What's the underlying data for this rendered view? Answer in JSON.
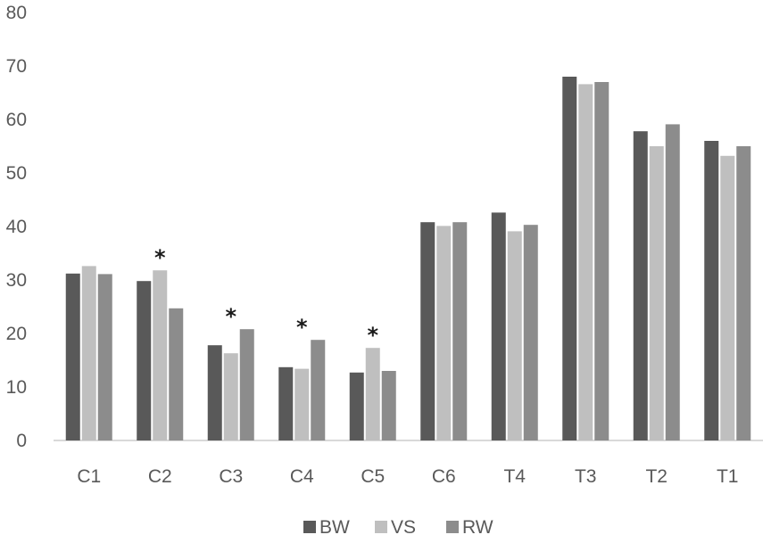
{
  "chart_data": {
    "type": "bar",
    "categories": [
      "C1",
      "C2",
      "C3",
      "C4",
      "C5",
      "C6",
      "T4",
      "T3",
      "T2",
      "T1"
    ],
    "series": [
      {
        "name": "BW",
        "color": "#595959",
        "values": [
          31.2,
          29.8,
          17.8,
          13.7,
          12.7,
          40.8,
          42.6,
          68.0,
          57.8,
          56.0
        ]
      },
      {
        "name": "VS",
        "color": "#bfbfbf",
        "values": [
          32.6,
          31.8,
          16.3,
          13.4,
          17.3,
          40.1,
          39.1,
          66.6,
          55.0,
          53.2
        ]
      },
      {
        "name": "RW",
        "color": "#8c8c8c",
        "values": [
          31.1,
          24.7,
          20.8,
          18.8,
          13.0,
          40.8,
          40.3,
          67.0,
          59.1,
          55.0
        ]
      }
    ],
    "annotations": [
      {
        "category": "C2",
        "text": "*"
      },
      {
        "category": "C3",
        "text": "*"
      },
      {
        "category": "C4",
        "text": "*"
      },
      {
        "category": "C5",
        "text": "*"
      }
    ],
    "yticks": [
      0,
      10,
      20,
      30,
      40,
      50,
      60,
      70,
      80
    ],
    "ylim": [
      0,
      80
    ],
    "grid": false,
    "legend_position": "bottom-center",
    "axis_color": "#d9d9d9",
    "text_color": "#595959"
  }
}
